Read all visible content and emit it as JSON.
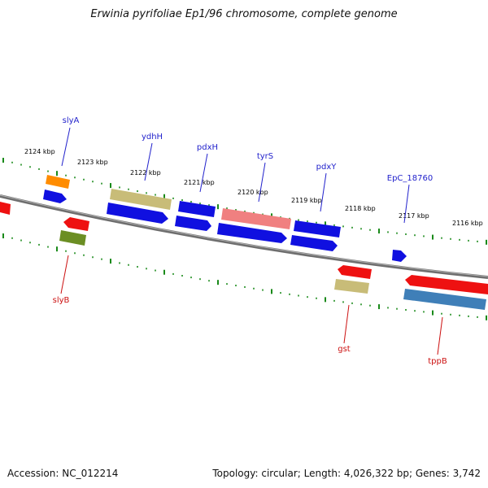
{
  "title": "Erwinia pyrifoliae Ep1/96 chromosome, complete genome",
  "footer": {
    "accession": "Accession: NC_012214",
    "summary": "Topology: circular; Length: 4,026,322 bp; Genes: 3,742"
  },
  "colors": {
    "backbone": "#808080",
    "tick": "#1a8a1a",
    "gene_label_top": "#2222cc",
    "gene_label_bottom": "#cc1111",
    "kbp_label": "#111111"
  },
  "kbp_labels": [
    "2124 kbp",
    "2123 kbp",
    "2122 kbp",
    "2121 kbp",
    "2120 kbp",
    "2119 kbp",
    "2118 kbp",
    "2117 kbp",
    "2116 kbp"
  ],
  "gene_labels": {
    "top": [
      "slyA",
      "ydhH",
      "pdxH",
      "tyrS",
      "pdxY",
      "EpC_18760"
    ],
    "bottom": [
      "slyB",
      "gst",
      "tppB"
    ]
  },
  "gene_colors": {
    "blue": "#1010e0",
    "red": "#ee1111",
    "orange": "#ff8c00",
    "khaki": "#c8bc78",
    "olive": "#6b8e23",
    "pink": "#f08080",
    "steelblue": "#3f7fb8"
  }
}
